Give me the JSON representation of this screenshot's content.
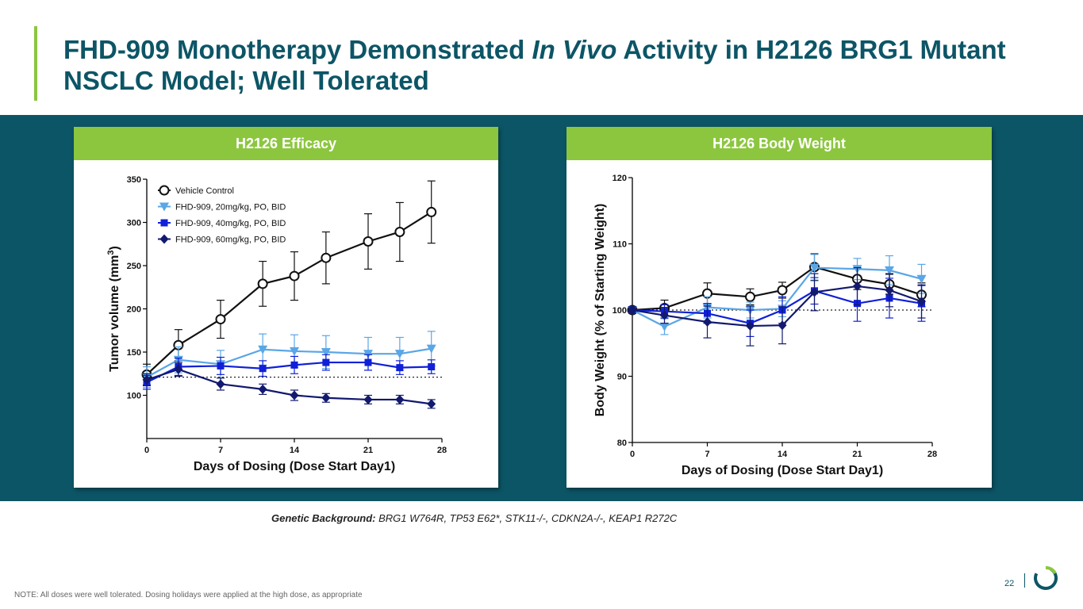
{
  "slide": {
    "title_part1": "FHD-909 Monotherapy Demonstrated ",
    "title_italic": "In Vivo",
    "title_part2": " Activity in H2126 BRG1 Mutant NSCLC Model; Well Tolerated",
    "genetic_label": "Genetic Background:",
    "genetic_text": " BRG1 W764R, TP53 E62*, STK11-/-, CDKN2A-/-, KEAP1 R272C",
    "note": "NOTE: All doses were well tolerated. Dosing holidays were applied at the high dose, as appropriate",
    "page_number": "22",
    "colors": {
      "brand_teal": "#0c5566",
      "accent_green": "#8cc63f",
      "vehicle": "#111111",
      "dose20": "#5aa6e6",
      "dose40": "#1020d8",
      "dose60": "#12196e"
    }
  },
  "chart_data": [
    {
      "panel_title": "H2126 Efficacy",
      "type": "line",
      "xlabel": "Days of Dosing (Dose Start Day1)",
      "ylabel": "Tumor volume (mm",
      "ylabel_sup": "3",
      "ylabel_close": ")",
      "xlim": [
        0,
        28
      ],
      "ylim": [
        50,
        350
      ],
      "xticks": [
        0,
        7,
        14,
        21,
        28
      ],
      "yticks": [
        100,
        150,
        200,
        250,
        300,
        350
      ],
      "reference_line": 121,
      "legend_position": "top-left",
      "series": [
        {
          "name": "Vehicle Control",
          "marker": "open-circle",
          "color": "#111111",
          "x": [
            0,
            3,
            7,
            11,
            14,
            17,
            21,
            24,
            27
          ],
          "y": [
            124,
            158,
            188,
            229,
            238,
            259,
            278,
            289,
            312
          ],
          "err": [
            12,
            18,
            22,
            26,
            28,
            30,
            32,
            34,
            36
          ]
        },
        {
          "name": "FHD-909, 20mg/kg, PO, BID",
          "marker": "triangle-down",
          "color": "#5aa6e6",
          "x": [
            0,
            3,
            7,
            11,
            14,
            17,
            21,
            24,
            27
          ],
          "y": [
            121,
            141,
            136,
            153,
            151,
            150,
            148,
            148,
            154
          ],
          "err": [
            12,
            15,
            16,
            18,
            19,
            19,
            19,
            19,
            20
          ]
        },
        {
          "name": "FHD-909, 40mg/kg, PO, BID",
          "marker": "square",
          "color": "#1020d8",
          "x": [
            0,
            3,
            7,
            11,
            14,
            17,
            21,
            24,
            27
          ],
          "y": [
            115,
            133,
            134,
            131,
            135,
            138,
            138,
            132,
            133
          ],
          "err": [
            8,
            10,
            10,
            9,
            10,
            9,
            9,
            8,
            8
          ]
        },
        {
          "name": "FHD-909, 60mg/kg, PO, BID",
          "marker": "diamond",
          "color": "#12196e",
          "x": [
            0,
            3,
            7,
            11,
            14,
            17,
            21,
            24,
            27
          ],
          "y": [
            118,
            130,
            113,
            107,
            100,
            97,
            95,
            95,
            90
          ],
          "err": [
            7,
            8,
            7,
            6,
            6,
            5,
            5,
            5,
            5
          ]
        }
      ]
    },
    {
      "panel_title": "H2126 Body Weight",
      "type": "line",
      "xlabel": "Days of Dosing (Dose Start Day1)",
      "ylabel": "Body Weight (% of Starting Weight)",
      "xlim": [
        0,
        28
      ],
      "ylim": [
        80,
        120
      ],
      "xticks": [
        0,
        7,
        14,
        21,
        28
      ],
      "yticks": [
        80,
        90,
        100,
        110,
        120
      ],
      "reference_line": 100,
      "series": [
        {
          "name": "Vehicle Control",
          "marker": "open-circle",
          "color": "#111111",
          "x": [
            0,
            3,
            7,
            11,
            14,
            17,
            21,
            24,
            27
          ],
          "y": [
            100,
            100.3,
            102.5,
            102,
            103,
            106.5,
            104.7,
            103.9,
            102.3
          ],
          "err": [
            0.5,
            1.2,
            1.6,
            1.2,
            1.2,
            2.0,
            1.6,
            1.5,
            1.8
          ]
        },
        {
          "name": "FHD-909, 20mg/kg, PO, BID",
          "marker": "triangle-down",
          "color": "#5aa6e6",
          "x": [
            0,
            3,
            7,
            11,
            14,
            17,
            21,
            24,
            27
          ],
          "y": [
            100,
            97.5,
            100.4,
            100,
            100.2,
            106.4,
            106.2,
            106,
            104.7
          ],
          "err": [
            0.5,
            1.2,
            1.6,
            1.2,
            1.2,
            2.0,
            1.6,
            2.2,
            2.2
          ]
        },
        {
          "name": "FHD-909, 40mg/kg, PO, BID",
          "marker": "square",
          "color": "#1020d8",
          "x": [
            0,
            3,
            7,
            11,
            14,
            17,
            21,
            24,
            27
          ],
          "y": [
            100,
            99.8,
            99.5,
            98,
            100,
            102.9,
            101,
            101.8,
            101
          ],
          "err": [
            0.5,
            1.0,
            1.5,
            2.0,
            2.0,
            2.0,
            2.7,
            3.0,
            2.7
          ]
        },
        {
          "name": "FHD-909, 60mg/kg, PO, BID",
          "marker": "diamond",
          "color": "#12196e",
          "x": [
            0,
            3,
            7,
            11,
            14,
            17,
            21,
            24,
            27
          ],
          "y": [
            100,
            99.2,
            98.2,
            97.6,
            97.7,
            102.7,
            103.6,
            103,
            101.3
          ],
          "err": [
            0.5,
            1.2,
            2.4,
            3.0,
            2.8,
            2.8,
            2.8,
            2.5,
            2.5
          ]
        }
      ]
    }
  ]
}
